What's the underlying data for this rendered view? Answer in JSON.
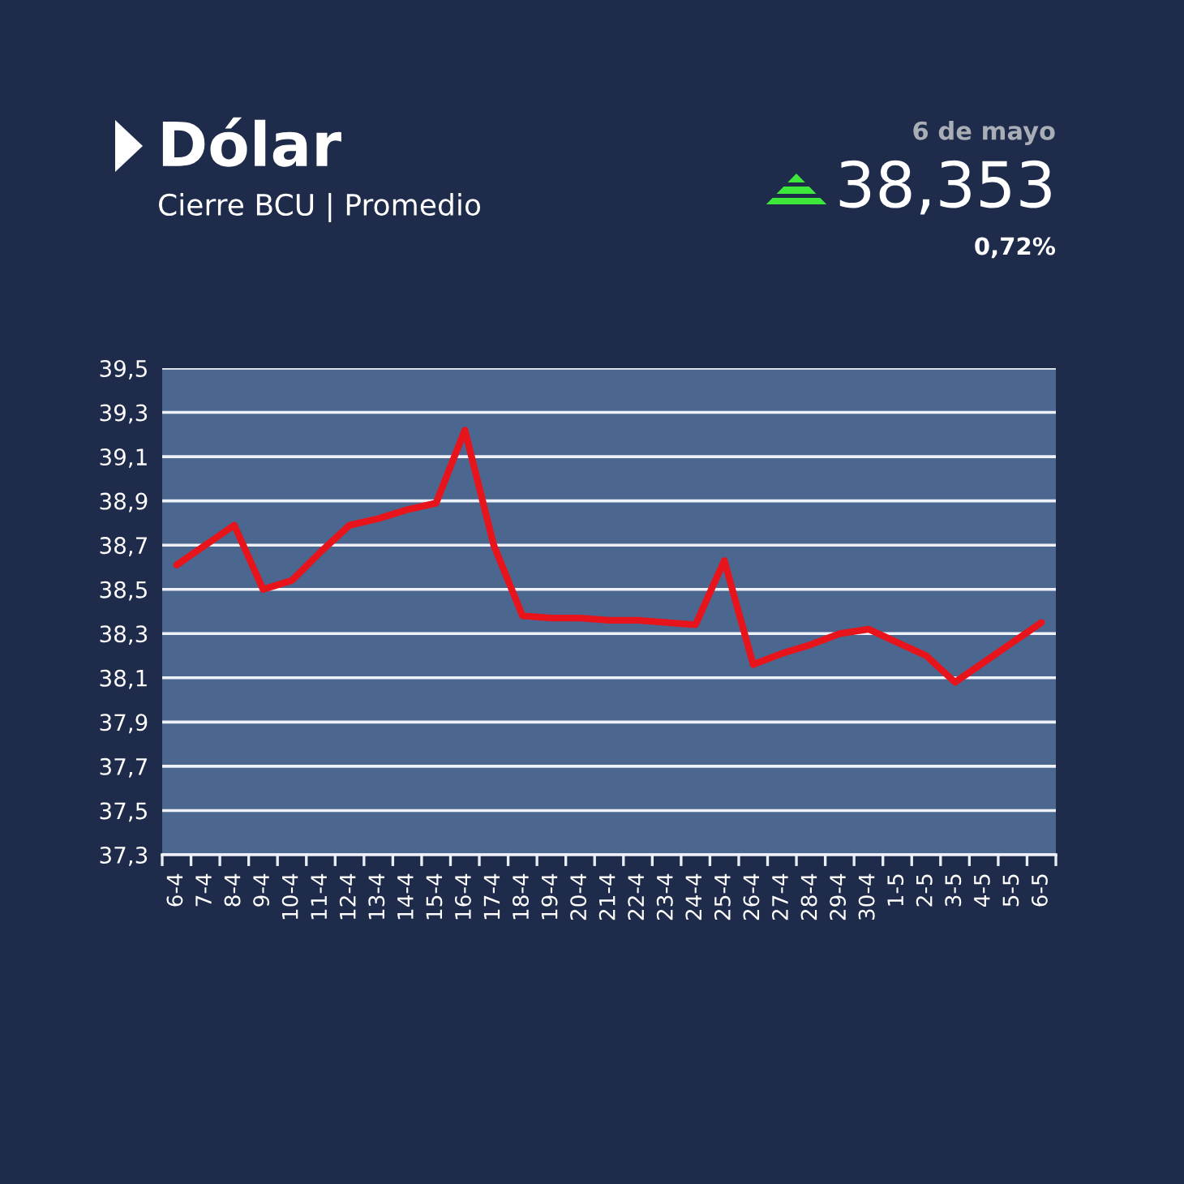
{
  "chart_data": {
    "type": "line",
    "title": "Dólar",
    "subtitle": "Cierre BCU | Promedio",
    "annotations": [
      "6 de mayo",
      "38,353",
      "0,72%"
    ],
    "categories": [
      "6-4",
      "7-4",
      "8-4",
      "9-4",
      "10-4",
      "11-4",
      "12-4",
      "13-4",
      "14-4",
      "15-4",
      "16-4",
      "17-4",
      "18-4",
      "19-4",
      "20-4",
      "21-4",
      "22-4",
      "23-4",
      "24-4",
      "25-4",
      "26-4",
      "27-4",
      "28-4",
      "29-4",
      "30-4",
      "1-5",
      "2-5",
      "3-5",
      "4-5",
      "5-5",
      "6-5"
    ],
    "series": [
      {
        "color": "#e8141c",
        "values": [
          38.61,
          38.7,
          38.79,
          38.5,
          38.54,
          38.67,
          38.79,
          38.82,
          38.86,
          38.89,
          39.22,
          38.7,
          38.38,
          38.37,
          38.37,
          38.36,
          38.36,
          38.35,
          38.34,
          38.63,
          38.16,
          38.21,
          38.25,
          38.3,
          38.32,
          38.26,
          38.2,
          38.08,
          38.17,
          38.26,
          38.35
        ]
      }
    ],
    "ylim": [
      37.3,
      39.5
    ],
    "yticks": [
      {
        "value": 37.3,
        "label": "37,3"
      },
      {
        "value": 37.5,
        "label": "37,5"
      },
      {
        "value": 37.7,
        "label": "37,7"
      },
      {
        "value": 37.9,
        "label": "37,9"
      },
      {
        "value": 38.1,
        "label": "38,1"
      },
      {
        "value": 38.3,
        "label": "38,3"
      },
      {
        "value": 38.5,
        "label": "38,5"
      },
      {
        "value": 38.7,
        "label": "38,7"
      },
      {
        "value": 38.9,
        "label": "38,9"
      },
      {
        "value": 39.1,
        "label": "39,1"
      },
      {
        "value": 39.3,
        "label": "39,3"
      },
      {
        "value": 39.5,
        "label": "39,5"
      }
    ],
    "grid": "y",
    "line_style": "solid"
  }
}
